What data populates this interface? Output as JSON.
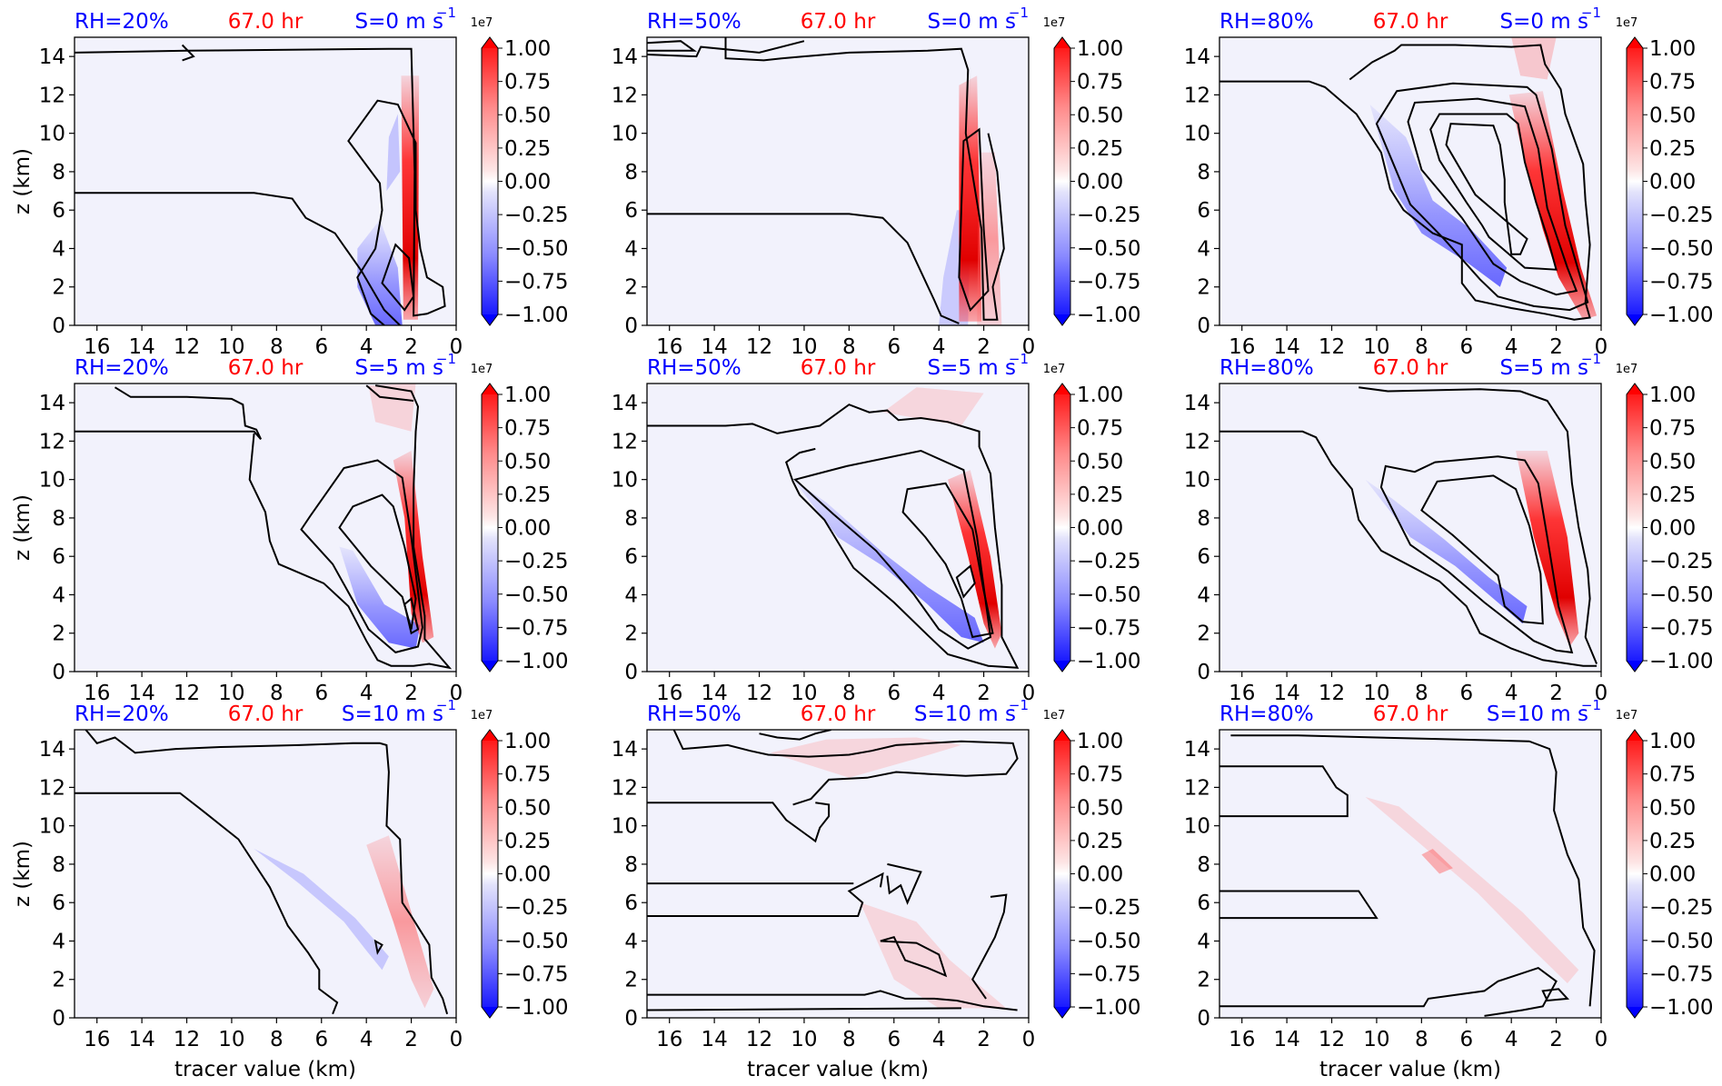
{
  "chart_data": {
    "type": "heatmap",
    "layout": {
      "rows": 3,
      "cols": 3
    },
    "time_label": "67.0 hr",
    "xlabel": "tracer value (km)",
    "ylabel": "z (km)",
    "xlim": [
      17,
      0
    ],
    "ylim": [
      0,
      15
    ],
    "x_ticks": [
      16,
      14,
      12,
      10,
      8,
      6,
      4,
      2,
      0
    ],
    "y_ticks": [
      0,
      2,
      4,
      6,
      8,
      10,
      12,
      14
    ],
    "colorbar": {
      "multiplier": "1e7",
      "ticks": [
        "1.00",
        "0.75",
        "0.50",
        "0.25",
        "0.00",
        "−0.25",
        "−0.50",
        "−0.75",
        "−1.00"
      ],
      "range": [
        -1.0,
        1.0
      ],
      "colormap": "bwr"
    },
    "colors": {
      "rh_label": "#0000ff",
      "time_label": "#ff0000",
      "shear_label": "#0000ff",
      "background": "#f2f2fc"
    },
    "panels": [
      {
        "rh": "RH=20%",
        "shear": "S=0 m s",
        "shear_exp": "−1"
      },
      {
        "rh": "RH=50%",
        "shear": "S=0 m s",
        "shear_exp": "−1"
      },
      {
        "rh": "RH=80%",
        "shear": "S=0 m s",
        "shear_exp": "−1"
      },
      {
        "rh": "RH=20%",
        "shear": "S=5 m s",
        "shear_exp": "−1"
      },
      {
        "rh": "RH=50%",
        "shear": "S=5 m s",
        "shear_exp": "−1"
      },
      {
        "rh": "RH=80%",
        "shear": "S=5 m s",
        "shear_exp": "−1"
      },
      {
        "rh": "RH=20%",
        "shear": "S=10 m s",
        "shear_exp": "−1"
      },
      {
        "rh": "RH=50%",
        "shear": "S=10 m s",
        "shear_exp": "−1"
      },
      {
        "rh": "RH=80%",
        "shear": "S=10 m s",
        "shear_exp": "−1"
      }
    ]
  }
}
